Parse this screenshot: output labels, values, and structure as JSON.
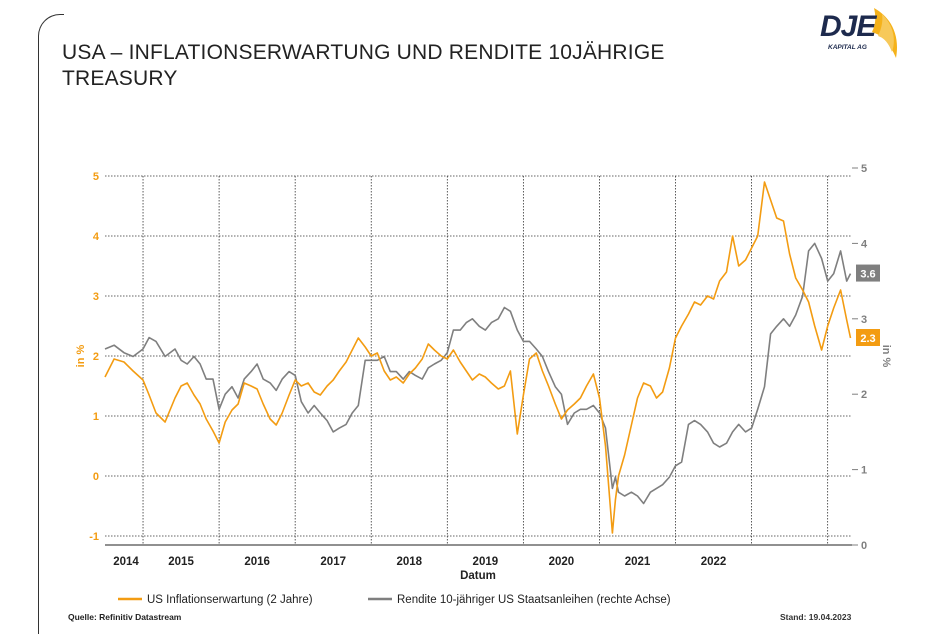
{
  "header": {
    "title": "USA – INFLATIONSERWARTUNG UND RENDITE 10JÄHRIGE TREASURY",
    "logo_text": "DJE",
    "logo_subtext": "KAPITAL AG"
  },
  "footer": {
    "source": "Quelle: Refinitiv Datastream",
    "date": "Stand: 19.04.2023"
  },
  "colors": {
    "inflation": "#f39c12",
    "yield": "#7f7f7f"
  },
  "chart_data": {
    "type": "line",
    "title": "USA – INFLATIONSERWARTUNG UND RENDITE 10JÄHRIGE TREASURY",
    "xlabel": "Datum",
    "ylabel_left": "in %",
    "ylabel_right": "in %",
    "xlim": [
      2013.5,
      2023.32
    ],
    "ylim_left": [
      -1.1,
      5.1
    ],
    "ylim_right": [
      0,
      5
    ],
    "y_ticks_left": [
      "-1",
      "0",
      "1",
      "2",
      "3",
      "4",
      "5"
    ],
    "y_ticks_right": [
      "0",
      "1",
      "2",
      "3",
      "4",
      "5"
    ],
    "x_tick_labels": [
      "2014",
      "2015",
      "2016",
      "2017",
      "2018",
      "2019",
      "2020",
      "2021",
      "2022"
    ],
    "grid": true,
    "legend_position": "bottom",
    "series": [
      {
        "name": "US Inflationserwartung (2 Jahre)",
        "axis": "left",
        "end_label": "2.3",
        "x": [
          2013.5,
          2013.62,
          2013.75,
          2013.87,
          2014.0,
          2014.08,
          2014.17,
          2014.29,
          2014.42,
          2014.5,
          2014.58,
          2014.67,
          2014.75,
          2014.83,
          2014.92,
          2015.0,
          2015.08,
          2015.17,
          2015.25,
          2015.33,
          2015.42,
          2015.5,
          2015.58,
          2015.67,
          2015.75,
          2015.83,
          2015.92,
          2016.0,
          2016.08,
          2016.17,
          2016.25,
          2016.33,
          2016.42,
          2016.5,
          2016.58,
          2016.67,
          2016.75,
          2016.83,
          2016.92,
          2017.0,
          2017.08,
          2017.17,
          2017.25,
          2017.33,
          2017.42,
          2017.5,
          2017.58,
          2017.67,
          2017.75,
          2017.83,
          2017.92,
          2018.0,
          2018.08,
          2018.17,
          2018.25,
          2018.33,
          2018.42,
          2018.5,
          2018.58,
          2018.67,
          2018.75,
          2018.83,
          2018.92,
          2019.0,
          2019.08,
          2019.17,
          2019.25,
          2019.33,
          2019.42,
          2019.5,
          2019.58,
          2019.67,
          2019.75,
          2019.83,
          2019.92,
          2020.0,
          2020.08,
          2020.17,
          2020.21,
          2020.25,
          2020.33,
          2020.42,
          2020.5,
          2020.58,
          2020.67,
          2020.75,
          2020.83,
          2020.92,
          2021.0,
          2021.08,
          2021.17,
          2021.25,
          2021.33,
          2021.42,
          2021.5,
          2021.58,
          2021.67,
          2021.75,
          2021.83,
          2021.92,
          2022.0,
          2022.08,
          2022.17,
          2022.25,
          2022.33,
          2022.42,
          2022.5,
          2022.58,
          2022.67,
          2022.75,
          2022.83,
          2022.92,
          2023.0,
          2023.08,
          2023.17,
          2023.25,
          2023.3
        ],
        "values": [
          1.65,
          1.95,
          1.9,
          1.75,
          1.6,
          1.35,
          1.05,
          0.9,
          1.3,
          1.5,
          1.55,
          1.35,
          1.2,
          0.95,
          0.75,
          0.55,
          0.9,
          1.1,
          1.2,
          1.55,
          1.5,
          1.45,
          1.2,
          0.95,
          0.85,
          1.05,
          1.35,
          1.6,
          1.5,
          1.55,
          1.4,
          1.35,
          1.5,
          1.6,
          1.75,
          1.9,
          2.1,
          2.3,
          2.15,
          2.0,
          2.05,
          1.75,
          1.6,
          1.65,
          1.55,
          1.7,
          1.8,
          1.95,
          2.2,
          2.1,
          2.0,
          1.95,
          2.1,
          1.9,
          1.75,
          1.6,
          1.7,
          1.65,
          1.55,
          1.45,
          1.5,
          1.75,
          0.7,
          1.35,
          1.95,
          2.05,
          1.75,
          1.5,
          1.2,
          0.95,
          1.1,
          1.2,
          1.3,
          1.5,
          1.7,
          1.3,
          0.5,
          -0.95,
          -0.4,
          0.0,
          0.35,
          0.85,
          1.3,
          1.55,
          1.5,
          1.3,
          1.4,
          1.8,
          2.3,
          2.5,
          2.7,
          2.9,
          2.85,
          3.0,
          2.95,
          3.25,
          3.4,
          4.0,
          3.5,
          3.6,
          3.8,
          4.0,
          4.9,
          4.6,
          4.3,
          4.25,
          3.7,
          3.3,
          3.1,
          2.9,
          2.5,
          2.1,
          2.5,
          2.8,
          3.1,
          2.6,
          2.3
        ]
      },
      {
        "name": "Rendite 10-jähriger US Staatsanleihen (rechte Achse)",
        "axis": "right",
        "end_label": "3.6",
        "x": [
          2013.5,
          2013.62,
          2013.75,
          2013.87,
          2014.0,
          2014.08,
          2014.17,
          2014.29,
          2014.42,
          2014.5,
          2014.58,
          2014.67,
          2014.75,
          2014.83,
          2014.92,
          2015.0,
          2015.08,
          2015.17,
          2015.25,
          2015.33,
          2015.42,
          2015.5,
          2015.58,
          2015.67,
          2015.75,
          2015.83,
          2015.92,
          2016.0,
          2016.08,
          2016.17,
          2016.25,
          2016.33,
          2016.42,
          2016.5,
          2016.58,
          2016.67,
          2016.75,
          2016.83,
          2016.92,
          2017.0,
          2017.08,
          2017.17,
          2017.25,
          2017.33,
          2017.42,
          2017.5,
          2017.58,
          2017.67,
          2017.75,
          2017.83,
          2017.92,
          2018.0,
          2018.08,
          2018.17,
          2018.25,
          2018.33,
          2018.42,
          2018.5,
          2018.58,
          2018.67,
          2018.75,
          2018.83,
          2018.92,
          2019.0,
          2019.08,
          2019.17,
          2019.25,
          2019.33,
          2019.42,
          2019.5,
          2019.58,
          2019.67,
          2019.75,
          2019.83,
          2019.92,
          2020.0,
          2020.08,
          2020.17,
          2020.21,
          2020.25,
          2020.33,
          2020.42,
          2020.5,
          2020.58,
          2020.67,
          2020.75,
          2020.83,
          2020.92,
          2021.0,
          2021.08,
          2021.17,
          2021.25,
          2021.33,
          2021.42,
          2021.5,
          2021.58,
          2021.67,
          2021.75,
          2021.83,
          2021.92,
          2022.0,
          2022.08,
          2022.17,
          2022.25,
          2022.33,
          2022.42,
          2022.5,
          2022.58,
          2022.67,
          2022.75,
          2022.83,
          2022.92,
          2023.0,
          2023.08,
          2023.17,
          2023.25,
          2023.3
        ],
        "values": [
          2.6,
          2.65,
          2.55,
          2.5,
          2.6,
          2.75,
          2.7,
          2.5,
          2.6,
          2.45,
          2.4,
          2.5,
          2.4,
          2.2,
          2.2,
          1.8,
          2.0,
          2.1,
          1.95,
          2.2,
          2.3,
          2.4,
          2.2,
          2.15,
          2.05,
          2.2,
          2.3,
          2.25,
          1.9,
          1.75,
          1.85,
          1.75,
          1.65,
          1.5,
          1.55,
          1.6,
          1.75,
          1.85,
          2.45,
          2.45,
          2.45,
          2.5,
          2.3,
          2.3,
          2.2,
          2.3,
          2.25,
          2.2,
          2.35,
          2.4,
          2.45,
          2.55,
          2.85,
          2.85,
          2.95,
          3.0,
          2.9,
          2.85,
          2.95,
          3.0,
          3.15,
          3.1,
          2.85,
          2.7,
          2.7,
          2.6,
          2.5,
          2.3,
          2.1,
          2.0,
          1.6,
          1.75,
          1.8,
          1.8,
          1.85,
          1.75,
          1.55,
          0.75,
          0.9,
          0.7,
          0.65,
          0.7,
          0.65,
          0.55,
          0.7,
          0.75,
          0.8,
          0.9,
          1.05,
          1.1,
          1.6,
          1.65,
          1.6,
          1.5,
          1.35,
          1.3,
          1.35,
          1.5,
          1.6,
          1.5,
          1.55,
          1.8,
          2.1,
          2.8,
          2.9,
          3.0,
          2.9,
          3.05,
          3.3,
          3.9,
          4.0,
          3.8,
          3.5,
          3.6,
          3.9,
          3.5,
          3.6
        ]
      }
    ]
  }
}
